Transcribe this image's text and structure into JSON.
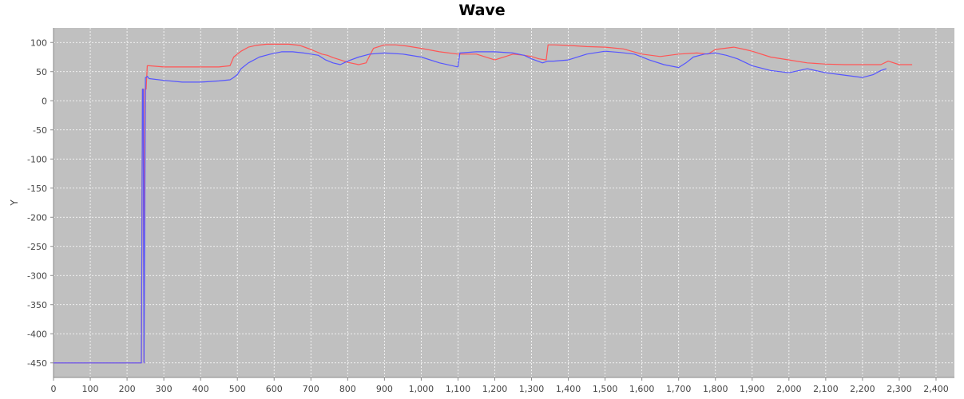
{
  "chart_data": {
    "type": "line",
    "title": "Wave",
    "xlabel": "",
    "ylabel": "Y",
    "xlim": [
      0,
      2450
    ],
    "ylim": [
      -475,
      125
    ],
    "x_ticks": [
      "0",
      "100",
      "200",
      "300",
      "400",
      "500",
      "600",
      "700",
      "800",
      "900",
      "1,000",
      "1,100",
      "1,200",
      "1,300",
      "1,400",
      "1,500",
      "1,600",
      "1,700",
      "1,800",
      "1,900",
      "2,000",
      "2,100",
      "2,200",
      "2,300",
      "2,400"
    ],
    "y_ticks": [
      "100",
      "50",
      "0",
      "-50",
      "-100",
      "-150",
      "-200",
      "-250",
      "-300",
      "-350",
      "-400",
      "-450"
    ],
    "grid": true,
    "legend": "none",
    "colors": {
      "plot_background": "#c0c0c0",
      "grid": "#ffffff",
      "series_red": "#ff5555",
      "series_blue": "#5555ff"
    },
    "series": [
      {
        "color": "#ff5555",
        "x": [
          0,
          239,
          242,
          244,
          246,
          248,
          252,
          255,
          260,
          300,
          350,
          400,
          450,
          480,
          490,
          500,
          510,
          530,
          550,
          580,
          610,
          640,
          670,
          700,
          730,
          745,
          760,
          780,
          800,
          830,
          850,
          870,
          900,
          930,
          960,
          1000,
          1050,
          1100,
          1150,
          1200,
          1250,
          1280,
          1300,
          1320,
          1340,
          1345,
          1360,
          1400,
          1450,
          1500,
          1550,
          1600,
          1650,
          1700,
          1750,
          1780,
          1800,
          1850,
          1880,
          1900,
          1950,
          2000,
          2050,
          2100,
          2150,
          2200,
          2250,
          2270,
          2300,
          2335
        ],
        "y": [
          -450,
          -450,
          20,
          20,
          -450,
          20,
          20,
          60,
          60,
          58,
          58,
          58,
          58,
          60,
          75,
          80,
          85,
          92,
          95,
          97,
          97,
          97,
          95,
          88,
          80,
          78,
          74,
          70,
          66,
          62,
          65,
          90,
          96,
          96,
          94,
          90,
          84,
          80,
          80,
          70,
          80,
          78,
          76,
          72,
          70,
          96,
          96,
          95,
          93,
          92,
          89,
          80,
          76,
          80,
          82,
          80,
          88,
          92,
          88,
          85,
          75,
          70,
          65,
          63,
          62,
          62,
          62,
          68,
          62,
          62
        ]
      },
      {
        "color": "#5555ff",
        "x": [
          0,
          239,
          242,
          244,
          246,
          250,
          252,
          255,
          260,
          300,
          350,
          400,
          450,
          480,
          490,
          500,
          510,
          530,
          560,
          590,
          620,
          650,
          680,
          700,
          720,
          740,
          760,
          780,
          800,
          830,
          860,
          900,
          950,
          1000,
          1050,
          1100,
          1105,
          1150,
          1200,
          1250,
          1280,
          1300,
          1330,
          1345,
          1360,
          1400,
          1450,
          1500,
          1540,
          1580,
          1620,
          1660,
          1700,
          1720,
          1740,
          1770,
          1800,
          1830,
          1860,
          1900,
          1950,
          2000,
          2050,
          2100,
          2150,
          2200,
          2230,
          2250,
          2265
        ],
        "y": [
          -450,
          -450,
          20,
          20,
          -450,
          40,
          40,
          42,
          38,
          35,
          32,
          32,
          34,
          36,
          40,
          45,
          55,
          65,
          75,
          80,
          84,
          84,
          82,
          80,
          78,
          70,
          65,
          62,
          68,
          75,
          80,
          82,
          80,
          75,
          65,
          58,
          82,
          84,
          84,
          82,
          78,
          72,
          65,
          68,
          68,
          70,
          80,
          85,
          83,
          80,
          70,
          62,
          57,
          65,
          75,
          80,
          82,
          78,
          72,
          60,
          52,
          48,
          55,
          48,
          44,
          40,
          45,
          52,
          55
        ]
      }
    ]
  }
}
